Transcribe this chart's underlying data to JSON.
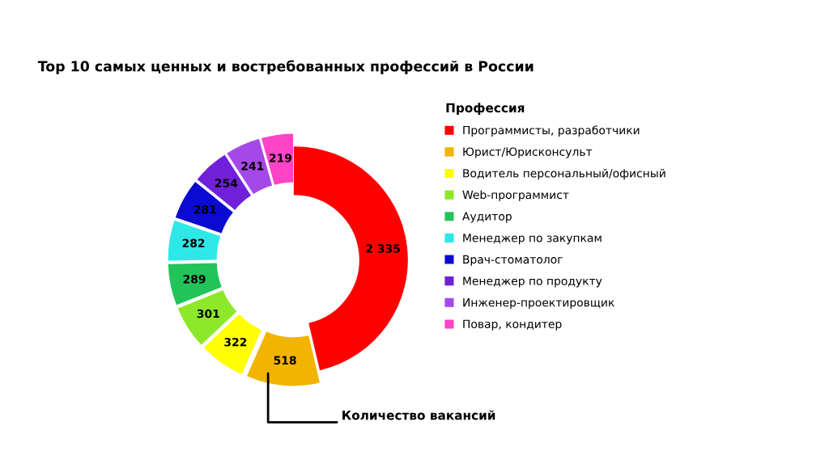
{
  "chart_data": {
    "type": "donut",
    "title": "Top 10 самых ценных и востребованных профессий в России",
    "legend_title": "Профессия",
    "legend": "right",
    "categories": [
      "Программисты, разработчики",
      "Юрист/Юрисконсульт",
      "Водитель персональный/офисный",
      "Web-программист",
      "Аудитор",
      "Менеджер по закупкам",
      "Врач-стоматолог",
      "Менеджер по продукту",
      "Инженер-проектировщик",
      "Повар, кондитер"
    ],
    "values": [
      2335,
      518,
      322,
      301,
      289,
      282,
      281,
      254,
      241,
      219
    ],
    "value_labels": [
      "2 335",
      "518",
      "322",
      "301",
      "289",
      "282",
      "281",
      "254",
      "241",
      "219"
    ],
    "colors": [
      "#ff0000",
      "#f2b400",
      "#ffff00",
      "#8ee82a",
      "#22c45a",
      "#2ee8e8",
      "#0a0ad0",
      "#7020d8",
      "#a548e8",
      "#ff44c8"
    ],
    "annotations": [
      {
        "text": "Количество вакансий",
        "x": "Юрист/Юрисконсульт"
      }
    ]
  }
}
